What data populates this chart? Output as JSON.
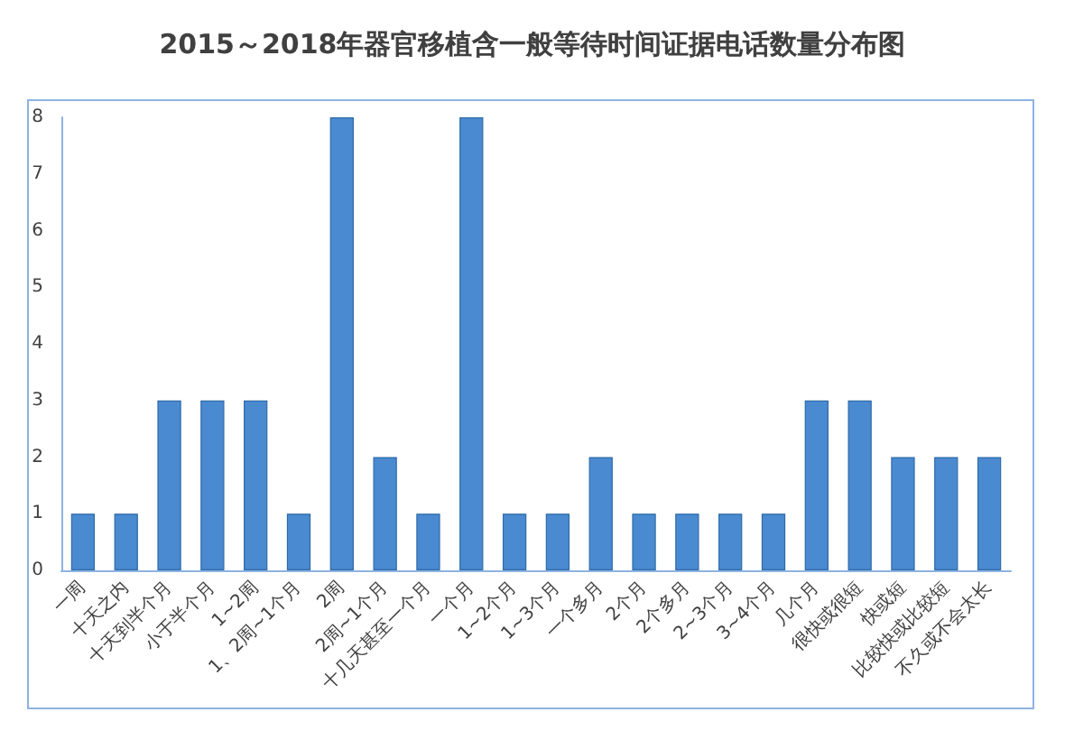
{
  "chart_data": {
    "type": "bar",
    "title": "2015～2018年器官移植含一般等待时间证据电话数量分布图",
    "categories": [
      "一周",
      "十天之内",
      "十天到半个月",
      "小于半个月",
      "1~2周",
      "1、2周~1个月",
      "2周",
      "2周~1个月",
      "十几天甚至一个月",
      "一个月",
      "1~2个月",
      "1~3个月",
      "一个多月",
      "2个月",
      "2个多月",
      "2~3个月",
      "3~4个月",
      "几个月",
      "很快或很短",
      "快或短",
      "比较快或比较短",
      "不久或不会太长"
    ],
    "values": [
      1,
      1,
      3,
      3,
      3,
      1,
      8,
      2,
      1,
      8,
      1,
      1,
      2,
      1,
      1,
      1,
      1,
      3,
      3,
      2,
      2,
      2
    ],
    "color": "#4a8ad0",
    "ylim": [
      0,
      8
    ],
    "yticks": [
      0,
      1,
      2,
      3,
      4,
      5,
      6,
      7,
      8
    ],
    "grid": false
  }
}
